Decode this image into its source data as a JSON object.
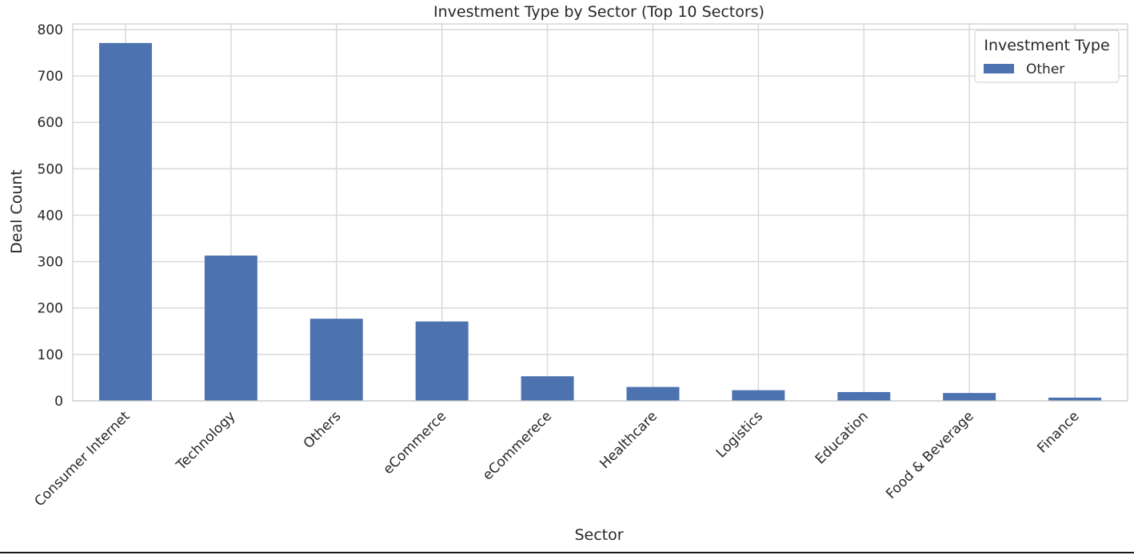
{
  "chart_data": {
    "type": "bar",
    "title": "Investment Type by Sector (Top 10 Sectors)",
    "xlabel": "Sector",
    "ylabel": "Deal Count",
    "categories": [
      "Consumer Internet",
      "Technology",
      "Others",
      "eCommerce",
      "eCommerece",
      "Healthcare",
      "Logistics",
      "Education",
      "Food & Beverage",
      "Finance"
    ],
    "series": [
      {
        "name": "Other",
        "values": [
          771,
          313,
          177,
          171,
          53,
          30,
          23,
          19,
          17,
          7
        ]
      }
    ],
    "ylim": [
      0,
      812
    ],
    "yticks": [
      0,
      100,
      200,
      300,
      400,
      500,
      600,
      700,
      800
    ],
    "grid": true,
    "legend": {
      "title": "Investment Type",
      "position": "top-right"
    },
    "colors": {
      "bar": "#4c72b0",
      "grid": "#d9d9d9",
      "spine": "#cccccc",
      "text": "#262626"
    }
  }
}
